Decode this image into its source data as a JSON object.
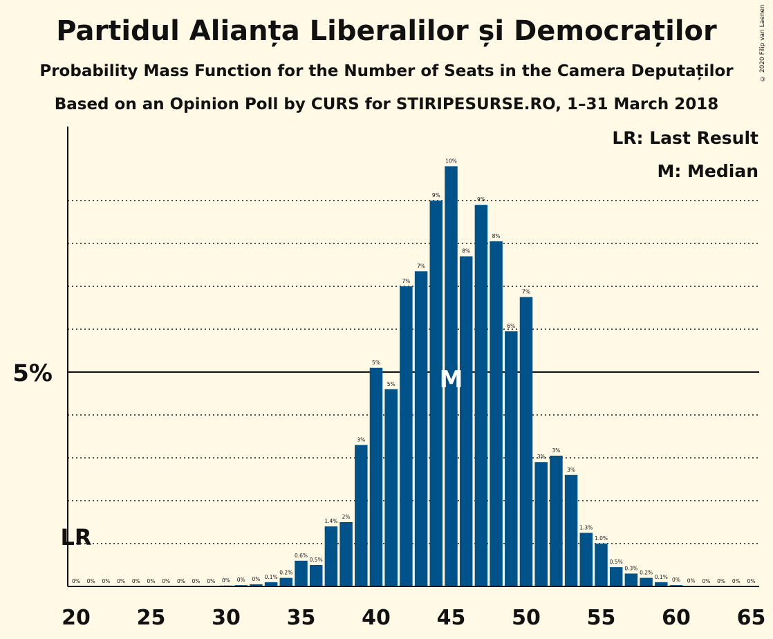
{
  "title": "Partidul Alianța Liberalilor și Democraților",
  "subtitle_1": "Probability Mass Function for the Number of Seats in the Camera Deputaților",
  "subtitle_2": "Based on an Opinion Poll by CURS for STIRIPESURSE.RO, 1–31 March 2018",
  "copyright": "© 2020 Filip van Laenen",
  "legend": {
    "lr": "LR: Last Result",
    "m": "M: Median"
  },
  "markers": {
    "last_result_label": "LR",
    "last_result_seats": 20,
    "median_label": "M",
    "median_seats": 45
  },
  "colors": {
    "bar": "#00538a",
    "background": "#fff9e5",
    "text": "#111111"
  },
  "chart_data": {
    "type": "bar",
    "x": [
      20,
      21,
      22,
      23,
      24,
      25,
      26,
      27,
      28,
      29,
      30,
      31,
      32,
      33,
      34,
      35,
      36,
      37,
      38,
      39,
      40,
      41,
      42,
      43,
      44,
      45,
      46,
      47,
      48,
      49,
      50,
      51,
      52,
      53,
      54,
      55,
      56,
      57,
      58,
      59,
      60,
      61,
      62,
      63,
      64,
      65
    ],
    "values": [
      0,
      0,
      0,
      0,
      0,
      0,
      0,
      0,
      0,
      0,
      0.02,
      0.03,
      0.05,
      0.1,
      0.2,
      0.6,
      0.5,
      1.4,
      1.5,
      3.3,
      5.1,
      4.6,
      7.0,
      7.35,
      9.0,
      9.8,
      7.7,
      8.9,
      8.05,
      5.95,
      6.75,
      2.9,
      3.05,
      2.6,
      1.25,
      1.0,
      0.45,
      0.3,
      0.2,
      0.1,
      0.03,
      0.01,
      0,
      0,
      0,
      0
    ],
    "labels": [
      "0%",
      "0%",
      "0%",
      "0%",
      "0%",
      "0%",
      "0%",
      "0%",
      "0%",
      "0%",
      "0%",
      "0%",
      "0%",
      "0.1%",
      "0.2%",
      "0.6%",
      "0.5%",
      "1.4%",
      "2%",
      "3%",
      "5%",
      "5%",
      "7%",
      "7%",
      "9%",
      "10%",
      "8%",
      "9%",
      "8%",
      "6%",
      "7%",
      "3%",
      "3%",
      "3%",
      "1.3%",
      "1.0%",
      "0.5%",
      "0.3%",
      "0.2%",
      "0.1%",
      "0%",
      "0%",
      "0%",
      "0%",
      "0%",
      "0%"
    ],
    "xticks": [
      20,
      25,
      30,
      35,
      40,
      45,
      50,
      55,
      60,
      65
    ],
    "xtick_labels": [
      "20",
      "25",
      "30",
      "35",
      "40",
      "45",
      "50",
      "55",
      "60",
      "65"
    ],
    "ytick_major": 5,
    "ytick_major_label": "5%",
    "ygrid_minor": [
      1,
      2,
      3,
      4,
      6,
      7,
      8,
      9
    ],
    "ylim": [
      0,
      10
    ]
  }
}
